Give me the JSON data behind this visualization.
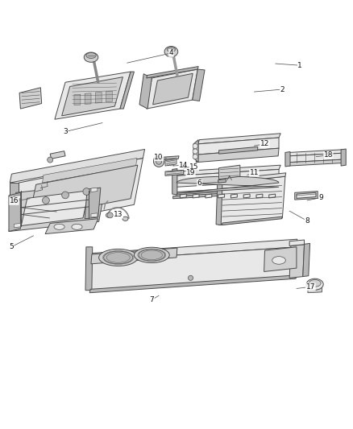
{
  "background_color": "#ffffff",
  "line_color": "#4a4a4a",
  "label_color": "#333333",
  "lw": 0.7,
  "figsize": [
    4.38,
    5.33
  ],
  "dpi": 100,
  "parts_labels": [
    [
      1,
      0.85,
      0.923,
      0.78,
      0.928
    ],
    [
      2,
      0.8,
      0.855,
      0.72,
      0.848
    ],
    [
      3,
      0.185,
      0.735,
      0.29,
      0.76
    ],
    [
      4,
      0.485,
      0.958,
      0.36,
      0.93
    ],
    [
      5,
      0.032,
      0.408,
      0.095,
      0.44
    ],
    [
      6,
      0.565,
      0.588,
      0.62,
      0.592
    ],
    [
      7,
      0.43,
      0.258,
      0.45,
      0.27
    ],
    [
      8,
      0.87,
      0.482,
      0.82,
      0.51
    ],
    [
      9,
      0.91,
      0.548,
      0.87,
      0.54
    ],
    [
      10,
      0.45,
      0.663,
      0.472,
      0.66
    ],
    [
      11,
      0.72,
      0.618,
      0.7,
      0.612
    ],
    [
      12,
      0.75,
      0.7,
      0.72,
      0.695
    ],
    [
      13,
      0.335,
      0.5,
      0.34,
      0.505
    ],
    [
      14,
      0.52,
      0.64,
      0.49,
      0.638
    ],
    [
      15,
      0.55,
      0.635,
      0.52,
      0.633
    ],
    [
      16,
      0.04,
      0.538,
      0.085,
      0.545
    ],
    [
      17,
      0.88,
      0.295,
      0.84,
      0.29
    ],
    [
      18,
      0.93,
      0.668,
      0.895,
      0.664
    ],
    [
      19,
      0.54,
      0.618,
      0.555,
      0.614
    ]
  ]
}
